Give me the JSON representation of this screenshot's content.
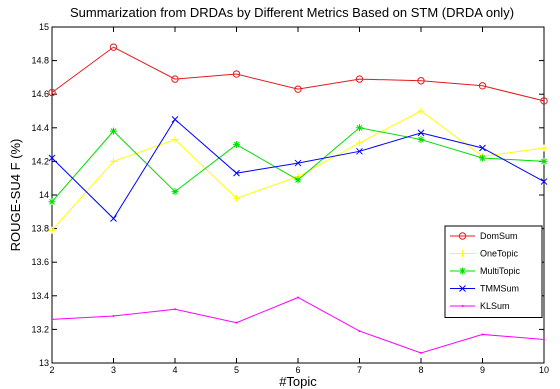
{
  "chart_data": {
    "type": "line",
    "title": "Summarization from DRDAs by Different Metrics Based on STM (DRDA only)",
    "xlabel": "#Topic",
    "ylabel": "ROUGE-SU4 F (%)",
    "xlim": [
      2,
      10
    ],
    "ylim": [
      13,
      15
    ],
    "x": [
      2,
      3,
      4,
      5,
      6,
      7,
      8,
      9,
      10
    ],
    "xticks": [
      "2",
      "3",
      "4",
      "5",
      "6",
      "7",
      "8",
      "9",
      "10"
    ],
    "yticks": [
      "13",
      "13.2",
      "13.4",
      "13.6",
      "13.8",
      "14",
      "14.2",
      "14.4",
      "14.6",
      "14.8",
      "15"
    ],
    "legend_position": "lower-right",
    "grid": false,
    "series": [
      {
        "name": "DomSum",
        "color": "#e41a1c",
        "marker": "circle",
        "values": [
          14.61,
          14.88,
          14.69,
          14.72,
          14.63,
          14.69,
          14.68,
          14.65,
          14.56
        ]
      },
      {
        "name": "OneTopic",
        "color": "#ffff00",
        "marker": "plus",
        "values": [
          13.79,
          14.2,
          14.33,
          13.98,
          14.11,
          14.31,
          14.5,
          14.23,
          14.28
        ]
      },
      {
        "name": "MultiTopic",
        "color": "#00dd00",
        "marker": "star",
        "values": [
          13.96,
          14.38,
          14.02,
          14.3,
          14.09,
          14.4,
          14.33,
          14.22,
          14.2
        ]
      },
      {
        "name": "TMMSum",
        "color": "#0000ff",
        "marker": "x",
        "values": [
          14.22,
          13.86,
          14.45,
          14.13,
          14.19,
          14.26,
          14.37,
          14.28,
          14.08
        ]
      },
      {
        "name": "KLSum",
        "color": "#ff00ff",
        "marker": "dot",
        "values": [
          13.26,
          13.28,
          13.32,
          13.24,
          13.39,
          13.19,
          13.06,
          13.17,
          13.14
        ]
      }
    ]
  }
}
